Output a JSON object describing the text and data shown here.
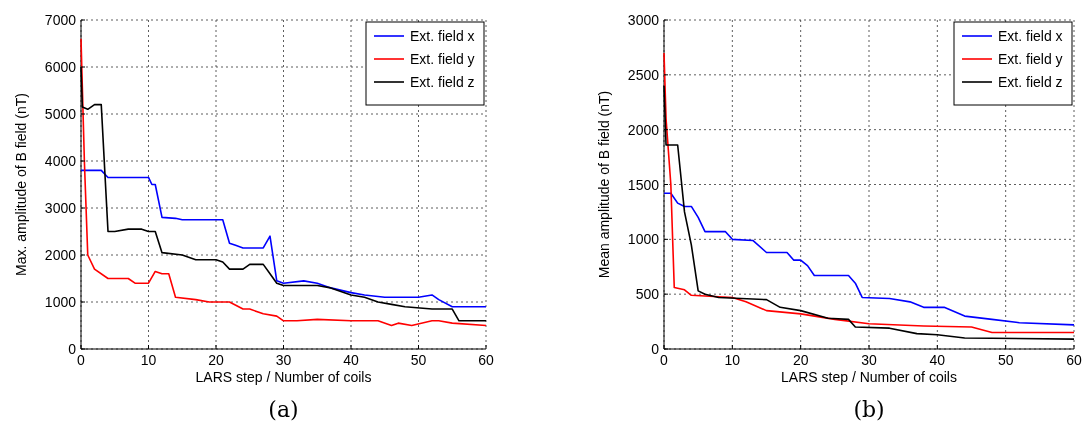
{
  "chart_data": [
    {
      "type": "line",
      "xlabel": "LARS step / Number of coils",
      "ylabel": "Max. amplitude of B field (nT)",
      "annotations": [
        "(a)"
      ],
      "xlim": [
        0,
        60
      ],
      "ylim": [
        0,
        7000
      ],
      "xticks": [
        0,
        10,
        20,
        30,
        40,
        50,
        60
      ],
      "yticks": [
        0,
        1000,
        2000,
        3000,
        4000,
        5000,
        6000,
        7000
      ],
      "grid": true,
      "legend": "top right",
      "line_style": "solid",
      "series": [
        {
          "name": "Ext. field x",
          "color": "#0000ff",
          "x": [
            0,
            3,
            4,
            10,
            10.5,
            11,
            12,
            14,
            15,
            21,
            22,
            23,
            24,
            27,
            28,
            29,
            30,
            33,
            35,
            37,
            40,
            42,
            45,
            50,
            52,
            53,
            55,
            60
          ],
          "values": [
            3800,
            3800,
            3650,
            3650,
            3500,
            3500,
            2800,
            2780,
            2750,
            2750,
            2250,
            2200,
            2150,
            2150,
            2400,
            1450,
            1400,
            1450,
            1400,
            1300,
            1200,
            1150,
            1100,
            1100,
            1150,
            1050,
            900,
            900
          ]
        },
        {
          "name": "Ext. field y",
          "color": "#ff0000",
          "x": [
            0,
            0.5,
            1,
            2,
            4,
            7,
            8,
            10,
            11,
            12,
            13,
            14,
            17,
            19,
            22,
            24,
            25,
            27,
            29,
            30,
            32,
            35,
            40,
            44,
            46,
            47,
            49,
            52,
            53,
            55,
            60
          ],
          "values": [
            6600,
            4000,
            2000,
            1700,
            1500,
            1500,
            1400,
            1400,
            1650,
            1600,
            1600,
            1100,
            1050,
            1000,
            1000,
            850,
            850,
            750,
            700,
            600,
            600,
            630,
            600,
            600,
            500,
            550,
            500,
            600,
            600,
            550,
            500
          ]
        },
        {
          "name": "Ext. field z",
          "color": "#000000",
          "x": [
            0,
            0.2,
            1,
            2,
            3,
            4,
            5,
            7,
            9,
            10,
            11,
            12,
            15,
            17,
            20,
            21,
            22,
            24,
            25,
            27,
            28,
            29,
            30,
            35,
            37,
            40,
            42,
            44,
            46,
            48,
            52,
            55,
            56,
            60
          ],
          "values": [
            6000,
            5150,
            5100,
            5200,
            5200,
            2500,
            2500,
            2550,
            2550,
            2500,
            2500,
            2050,
            2000,
            1900,
            1900,
            1850,
            1700,
            1700,
            1800,
            1800,
            1600,
            1400,
            1350,
            1350,
            1300,
            1150,
            1100,
            1000,
            950,
            900,
            850,
            850,
            600,
            600
          ]
        }
      ]
    },
    {
      "type": "line",
      "xlabel": "LARS step / Number of coils",
      "ylabel": "Mean amplitude of B field (nT)",
      "annotations": [
        "(b)"
      ],
      "xlim": [
        0,
        60
      ],
      "ylim": [
        0,
        3000
      ],
      "xticks": [
        0,
        10,
        20,
        30,
        40,
        50,
        60
      ],
      "yticks": [
        0,
        500,
        1000,
        1500,
        2000,
        2500,
        3000
      ],
      "grid": true,
      "legend": "top right",
      "line_style": "solid",
      "series": [
        {
          "name": "Ext. field x",
          "color": "#0000ff",
          "x": [
            0,
            1,
            2,
            3,
            4,
            5,
            6,
            9,
            10,
            13,
            15,
            18,
            19,
            20,
            21,
            22,
            27,
            28,
            29,
            33,
            36,
            38,
            41,
            44,
            48,
            52,
            60
          ],
          "values": [
            1420,
            1420,
            1330,
            1300,
            1300,
            1200,
            1070,
            1070,
            1000,
            990,
            880,
            880,
            810,
            810,
            760,
            670,
            670,
            600,
            470,
            460,
            430,
            380,
            380,
            300,
            270,
            240,
            220
          ]
        },
        {
          "name": "Ext. field y",
          "color": "#ff0000",
          "x": [
            0,
            0.3,
            1,
            1.5,
            3,
            4,
            10,
            12,
            15,
            20,
            25,
            30,
            38,
            45,
            48,
            60
          ],
          "values": [
            2700,
            2100,
            1500,
            560,
            540,
            490,
            470,
            430,
            350,
            320,
            270,
            230,
            210,
            200,
            150,
            150
          ]
        },
        {
          "name": "Ext. field z",
          "color": "#000000",
          "x": [
            0,
            0.3,
            2,
            3,
            4,
            5,
            6,
            8,
            15,
            17,
            20,
            24,
            27,
            28,
            33,
            37,
            40,
            44,
            60
          ],
          "values": [
            2400,
            1860,
            1860,
            1250,
            950,
            530,
            500,
            470,
            450,
            380,
            350,
            280,
            270,
            200,
            190,
            140,
            130,
            100,
            90
          ]
        }
      ]
    }
  ]
}
